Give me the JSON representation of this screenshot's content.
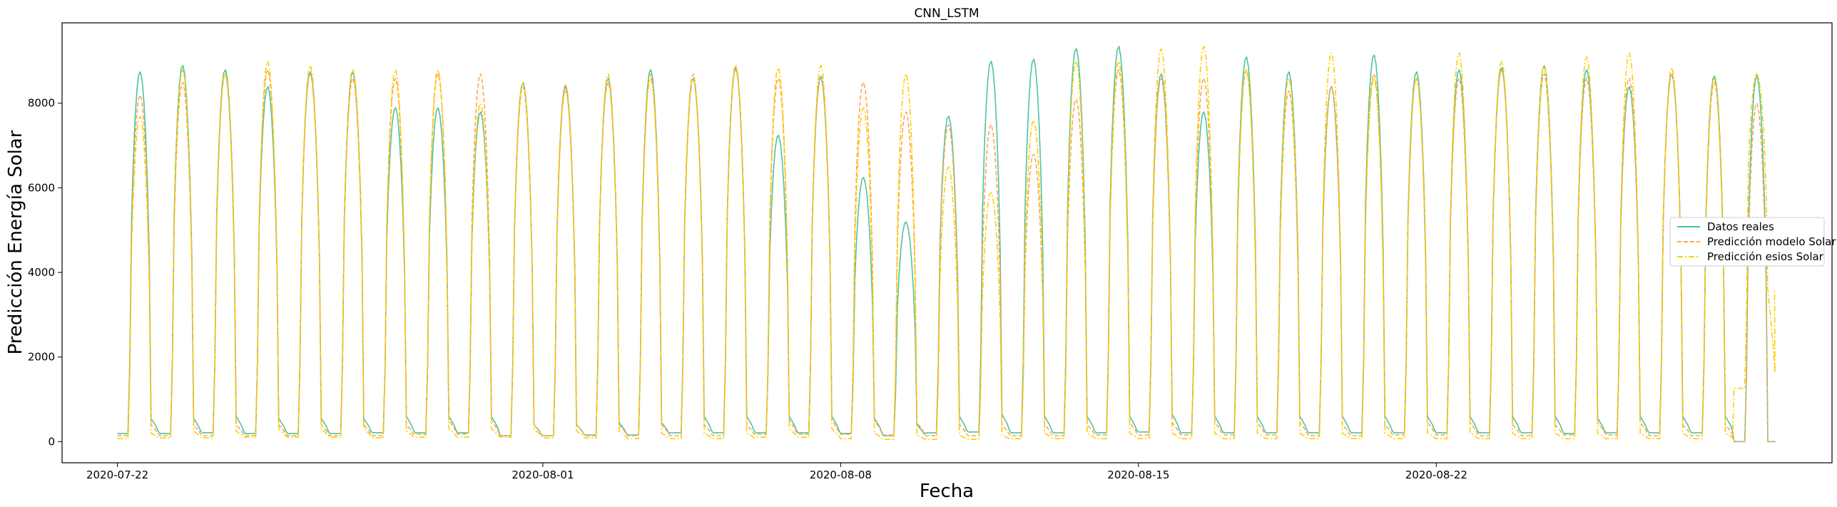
{
  "chart_data": {
    "type": "line",
    "title": "CNN_LSTM",
    "xlabel": "Fecha",
    "ylabel": "Predicción Energía Solar",
    "x_start": "2020-07-22",
    "x_end": "2020-08-29",
    "xlim_days": [
      -1.3,
      40.3
    ],
    "ylim": [
      -500,
      9900
    ],
    "x_ticks": [
      {
        "label": "2020-07-22",
        "day": 0
      },
      {
        "label": "2020-08-01",
        "day": 10
      },
      {
        "label": "2020-08-08",
        "day": 17
      },
      {
        "label": "2020-08-15",
        "day": 24
      },
      {
        "label": "2020-08-22",
        "day": 31
      }
    ],
    "y_ticks": [
      0,
      2000,
      4000,
      6000,
      8000
    ],
    "grid": false,
    "legend_position": "center-right",
    "series": [
      {
        "name": "Datos reales",
        "color": "#4fc3a1",
        "dash": "solid",
        "daily_peaks": [
          8750,
          8900,
          8800,
          8400,
          8750,
          8750,
          7900,
          7900,
          7800,
          8500,
          8400,
          8600,
          8800,
          8600,
          8850,
          7250,
          8650,
          6250,
          5200,
          7700,
          9000,
          9050,
          9300,
          9350,
          8700,
          7800,
          9100,
          8750,
          8400,
          9150,
          8750,
          8800,
          8850,
          8900,
          8800,
          8400,
          8700,
          8650,
          8650
        ],
        "daily_lows": [
          550,
          550,
          600,
          550,
          550,
          550,
          600,
          600,
          600,
          400,
          400,
          450,
          450,
          600,
          600,
          600,
          600,
          550,
          400,
          600,
          650,
          600,
          600,
          600,
          650,
          600,
          600,
          600,
          600,
          600,
          600,
          600,
          600,
          600,
          550,
          600,
          600,
          600,
          0
        ]
      },
      {
        "name": "Predicción modelo Solar",
        "color": "#ffa64d",
        "dash": "dashed",
        "daily_peaks": [
          8200,
          8500,
          8700,
          8800,
          8700,
          8600,
          8600,
          8700,
          8700,
          8400,
          8450,
          8500,
          8700,
          8700,
          8800,
          8600,
          8600,
          8500,
          7800,
          7500,
          7500,
          6800,
          8100,
          8800,
          8600,
          8600,
          8800,
          8300,
          8400,
          8700,
          8600,
          8600,
          8800,
          8700,
          8600,
          8600,
          8700,
          8500,
          8000
        ],
        "daily_lows": [
          400,
          400,
          400,
          400,
          400,
          400,
          400,
          500,
          500,
          400,
          400,
          400,
          400,
          400,
          400,
          500,
          500,
          500,
          450,
          400,
          400,
          400,
          400,
          450,
          450,
          450,
          450,
          450,
          400,
          400,
          450,
          450,
          400,
          400,
          450,
          450,
          400,
          400,
          0
        ]
      },
      {
        "name": "Predicción esios Solar",
        "color": "#ffcc00",
        "dash": "dashdot",
        "daily_peaks": [
          7700,
          8800,
          8700,
          9000,
          8900,
          8800,
          8800,
          8800,
          8000,
          8500,
          8300,
          8700,
          8600,
          8600,
          8900,
          8850,
          8900,
          7900,
          8700,
          6500,
          5900,
          7600,
          9000,
          9000,
          9300,
          9350,
          8800,
          8600,
          9200,
          8600,
          8600,
          9200,
          9000,
          8900,
          9100,
          9200,
          8850,
          8600,
          8700
        ],
        "daily_lows": [
          200,
          250,
          250,
          300,
          300,
          300,
          250,
          300,
          300,
          300,
          250,
          250,
          200,
          200,
          200,
          300,
          300,
          200,
          150,
          150,
          150,
          200,
          200,
          200,
          200,
          200,
          200,
          200,
          200,
          200,
          200,
          200,
          200,
          200,
          200,
          200,
          200,
          200,
          3600
        ]
      }
    ],
    "legend": [
      "Datos reales",
      "Predicción modelo Solar",
      "Predicción esios Solar"
    ]
  }
}
